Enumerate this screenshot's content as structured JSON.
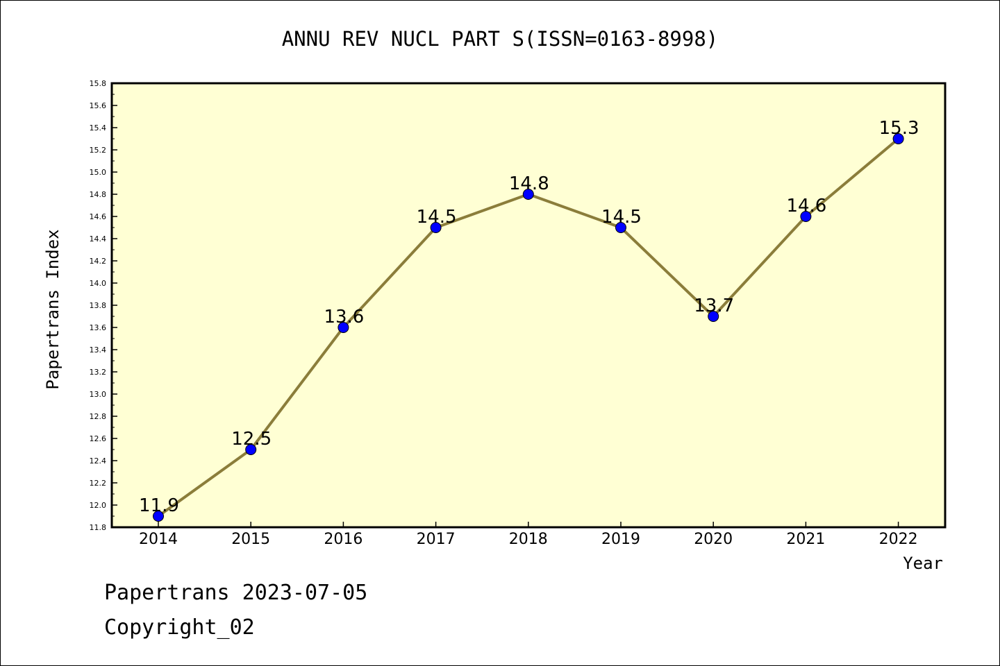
{
  "chart_data": {
    "type": "line",
    "title": "ANNU REV NUCL PART S(ISSN=0163-8998)",
    "xlabel": "Year",
    "ylabel": "Papertrans Index",
    "categories": [
      "2014",
      "2015",
      "2016",
      "2017",
      "2018",
      "2019",
      "2020",
      "2021",
      "2022"
    ],
    "series": [
      {
        "values": [
          11.9,
          12.5,
          13.6,
          14.5,
          14.8,
          14.5,
          13.7,
          14.6,
          15.3
        ]
      }
    ],
    "data_labels": [
      "11.9",
      "12.5",
      "13.6",
      "14.5",
      "14.8",
      "14.5",
      "13.7",
      "14.6",
      "15.3"
    ],
    "ylim": [
      11.8,
      15.8
    ],
    "y_ticks": [
      "11.8",
      "12.0",
      "12.2",
      "12.4",
      "12.6",
      "12.8",
      "13.0",
      "13.2",
      "13.4",
      "13.6",
      "13.8",
      "14.0",
      "14.2",
      "14.4",
      "14.6",
      "14.8",
      "15.0",
      "15.2",
      "15.4",
      "15.6",
      "15.8"
    ],
    "grid": false,
    "colors": {
      "plot_background": "#ffffd4",
      "line": "#8b7d3a",
      "marker": "#0000ff",
      "axis": "#000000"
    }
  },
  "footer": {
    "line1": "Papertrans 2023-07-05",
    "line2": "Copyright_02"
  }
}
